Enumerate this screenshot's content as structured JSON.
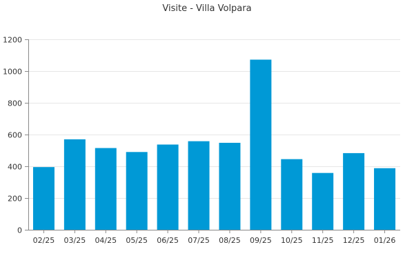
{
  "chart_data": {
    "type": "bar",
    "title": "Visite - Villa Volpara",
    "xlabel": "",
    "ylabel": "",
    "categories": [
      "02/25",
      "03/25",
      "04/25",
      "05/25",
      "06/25",
      "07/25",
      "08/25",
      "09/25",
      "10/25",
      "11/25",
      "12/25",
      "01/26"
    ],
    "values": [
      395,
      570,
      515,
      490,
      537,
      558,
      548,
      1072,
      445,
      358,
      483,
      388
    ],
    "ylim": [
      0,
      1200
    ],
    "yticks": [
      0,
      200,
      400,
      600,
      800,
      1000,
      1200
    ],
    "grid": true,
    "legend": "none",
    "bar_color": "#0099d6"
  }
}
